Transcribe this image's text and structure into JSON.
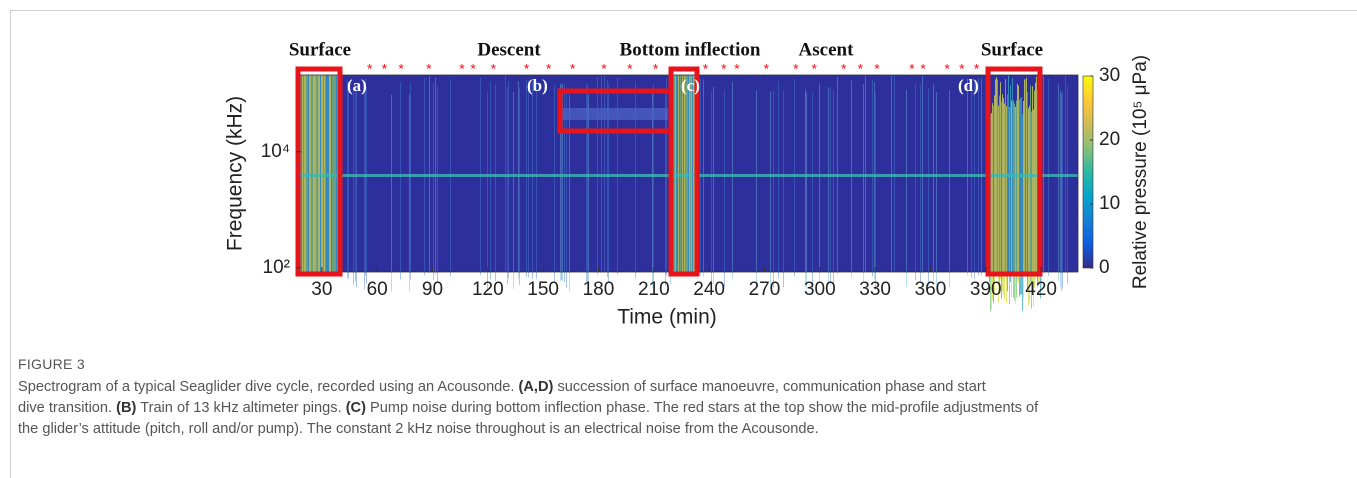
{
  "chart_data": {
    "type": "spectrogram",
    "phases": [
      "Surface",
      "Descent",
      "Bottom inflection",
      "Ascent",
      "Surface"
    ],
    "highlight_labels": [
      "(a)",
      "(b)",
      "(c)",
      "(d)"
    ],
    "xlabel": "Time (min)",
    "ylabel": "Frequency (kHz)",
    "xlim": [
      16,
      440
    ],
    "xticks": [
      30,
      60,
      90,
      120,
      150,
      180,
      210,
      240,
      270,
      300,
      330,
      360,
      390,
      420
    ],
    "ylim": [
      85,
      210000
    ],
    "log_y": true,
    "yticks": [
      {
        "value": 100,
        "label": "10²"
      },
      {
        "value": 10000,
        "label": "10⁴"
      }
    ],
    "colorbar_label": "Relative pressure (10⁵ μPa)",
    "clim": [
      0,
      30
    ],
    "cticks": [
      0,
      10,
      20,
      30
    ],
    "adjustments": [
      56,
      64,
      73,
      88,
      106,
      112,
      123,
      141,
      153,
      166,
      183,
      197,
      211,
      238,
      248,
      255,
      271,
      287,
      297,
      313,
      322,
      331,
      350,
      356,
      369,
      377,
      385
    ],
    "star_color": "#e8141c",
    "box_color": "#e8141c"
  },
  "figure": {
    "label": "FIGURE 3",
    "caption_lines": [
      [
        {
          "text": "Spectrogram of a typical Seaglider dive cycle, recorded using an Acousonde. "
        },
        {
          "text": "(A,D)",
          "bold": true
        },
        {
          "text": " succession of surface manoeuvre, communication phase and start"
        }
      ],
      [
        {
          "text": "dive transition. "
        },
        {
          "text": "(B)",
          "bold": true
        },
        {
          "text": " Train of 13 kHz altimeter pings. "
        },
        {
          "text": "(C)",
          "bold": true
        },
        {
          "text": " Pump noise during bottom inflection phase. The red stars at the top show the mid-profile adjustments of"
        }
      ],
      [
        {
          "text": "the glider’s attitude (pitch, roll and/or pump). The constant 2 kHz noise throughout is an electrical noise from the Acousonde."
        }
      ]
    ]
  }
}
